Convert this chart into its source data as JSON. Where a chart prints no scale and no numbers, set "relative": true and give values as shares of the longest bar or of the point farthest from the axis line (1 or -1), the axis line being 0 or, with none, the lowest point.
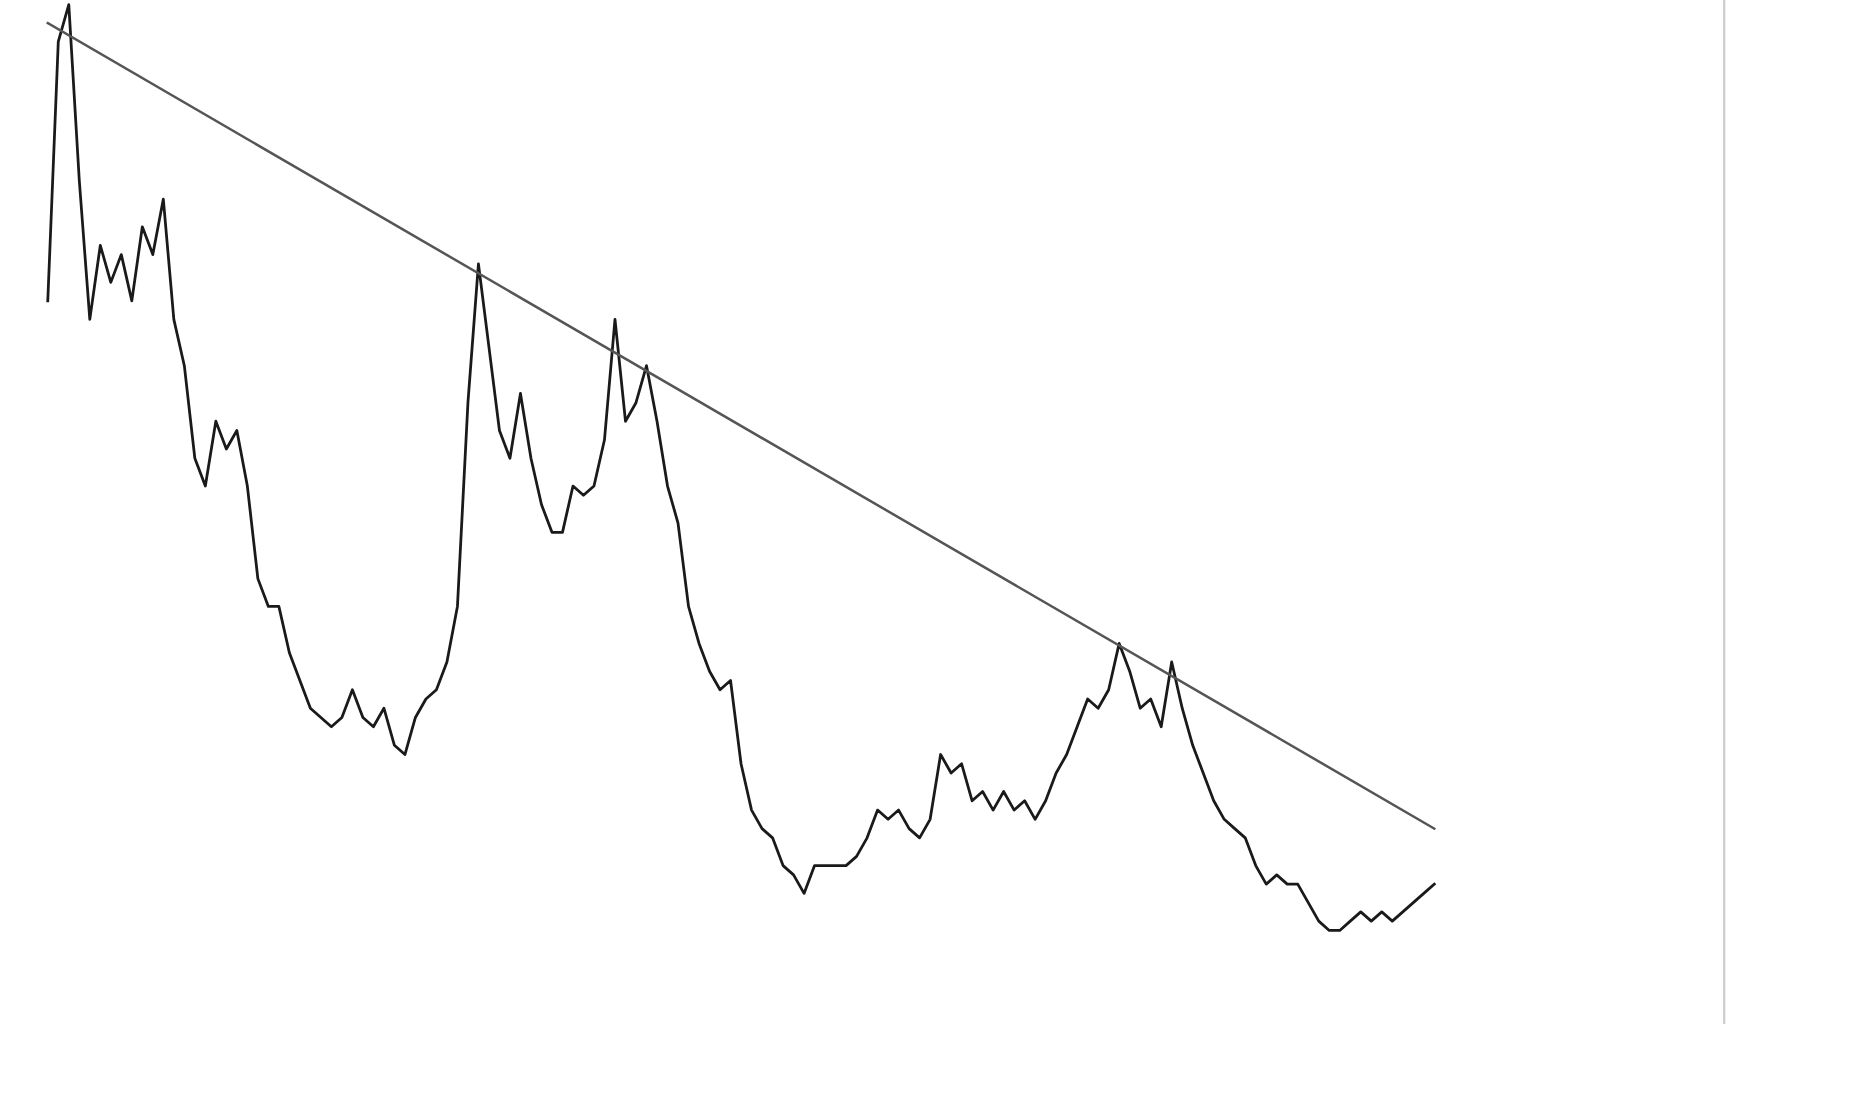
{
  "chart_data": {
    "type": "line",
    "relative": true,
    "legend": false,
    "marker": "none",
    "line_style": "solid",
    "categories": [
      null,
      null,
      null,
      null,
      null,
      null,
      null,
      null,
      null,
      null,
      null,
      null,
      null,
      null,
      null,
      null,
      null,
      null,
      null,
      null,
      null,
      null,
      null,
      null,
      null,
      null,
      null,
      null,
      null,
      null,
      null,
      null,
      null,
      null,
      null,
      null,
      null,
      null,
      null,
      null,
      null,
      null,
      null,
      null,
      null,
      null,
      null,
      null,
      null,
      null,
      null,
      null,
      null,
      null,
      null,
      null,
      null,
      null,
      null,
      null,
      null,
      null,
      null,
      null,
      null,
      null,
      null,
      null,
      null,
      null,
      null,
      null,
      null,
      null,
      null,
      null,
      null,
      null,
      null,
      null,
      null,
      null,
      null,
      null,
      null,
      null,
      null,
      null,
      null,
      null,
      null,
      null,
      null,
      null,
      null,
      null,
      null,
      null,
      null,
      null,
      null,
      null,
      null,
      null,
      null,
      null,
      null,
      null,
      null,
      null,
      null,
      null,
      null,
      null,
      null,
      null,
      null,
      null,
      null,
      null,
      null,
      null,
      null,
      null,
      null,
      null,
      null,
      null,
      null,
      null,
      null,
      null,
      null
    ],
    "series": [
      {
        "color": "#1a1a1a",
        "values": [
          0.68,
          0.96,
          1.0,
          0.81,
          0.66,
          0.74,
          0.7,
          0.73,
          0.68,
          0.76,
          0.73,
          0.79,
          0.66,
          0.61,
          0.51,
          0.48,
          0.55,
          0.52,
          0.54,
          0.48,
          0.38,
          0.35,
          0.35,
          0.3,
          0.27,
          0.24,
          0.23,
          0.22,
          0.23,
          0.26,
          0.23,
          0.22,
          0.24,
          0.2,
          0.19,
          0.23,
          0.25,
          0.26,
          0.29,
          0.35,
          0.57,
          0.72,
          0.63,
          0.54,
          0.51,
          0.58,
          0.51,
          0.46,
          0.43,
          0.43,
          0.48,
          0.47,
          0.48,
          0.53,
          0.66,
          0.55,
          0.57,
          0.61,
          0.55,
          0.48,
          0.44,
          0.35,
          0.31,
          0.28,
          0.26,
          0.27,
          0.18,
          0.13,
          0.11,
          0.1,
          0.07,
          0.06,
          0.04,
          0.07,
          0.07,
          0.07,
          0.07,
          0.08,
          0.1,
          0.13,
          0.12,
          0.13,
          0.11,
          0.1,
          0.12,
          0.19,
          0.17,
          0.18,
          0.14,
          0.15,
          0.13,
          0.15,
          0.13,
          0.14,
          0.12,
          0.14,
          0.17,
          0.19,
          0.22,
          0.25,
          0.24,
          0.26,
          0.31,
          0.28,
          0.24,
          0.25,
          0.22,
          0.29,
          0.24,
          0.2,
          0.17,
          0.14,
          0.12,
          0.11,
          0.1,
          0.07,
          0.05,
          0.06,
          0.05,
          0.05,
          0.03,
          0.01,
          0.0,
          0.0,
          0.01,
          0.02,
          0.01,
          0.02,
          0.01,
          0.02,
          0.03,
          0.04,
          0.05
        ]
      },
      {
        "color": "#555555",
        "values": [
          0.98,
          null,
          null,
          null,
          null,
          null,
          null,
          null,
          null,
          null,
          null,
          null,
          null,
          null,
          null,
          null,
          null,
          null,
          null,
          null,
          null,
          null,
          null,
          null,
          null,
          null,
          null,
          null,
          null,
          null,
          null,
          null,
          null,
          null,
          null,
          null,
          null,
          null,
          null,
          null,
          null,
          null,
          null,
          null,
          null,
          null,
          null,
          null,
          null,
          null,
          null,
          null,
          null,
          null,
          null,
          null,
          null,
          null,
          null,
          null,
          null,
          null,
          null,
          null,
          null,
          null,
          null,
          null,
          null,
          null,
          null,
          null,
          null,
          null,
          null,
          null,
          null,
          null,
          null,
          null,
          null,
          null,
          null,
          null,
          null,
          null,
          null,
          null,
          null,
          null,
          null,
          null,
          null,
          null,
          null,
          null,
          null,
          null,
          null,
          null,
          null,
          null,
          null,
          null,
          null,
          null,
          null,
          null,
          null,
          null,
          null,
          null,
          null,
          null,
          null,
          null,
          null,
          null,
          null,
          null,
          null,
          null,
          null,
          null,
          null,
          null,
          null,
          null,
          null,
          null,
          null,
          null,
          0.11
        ]
      }
    ]
  }
}
